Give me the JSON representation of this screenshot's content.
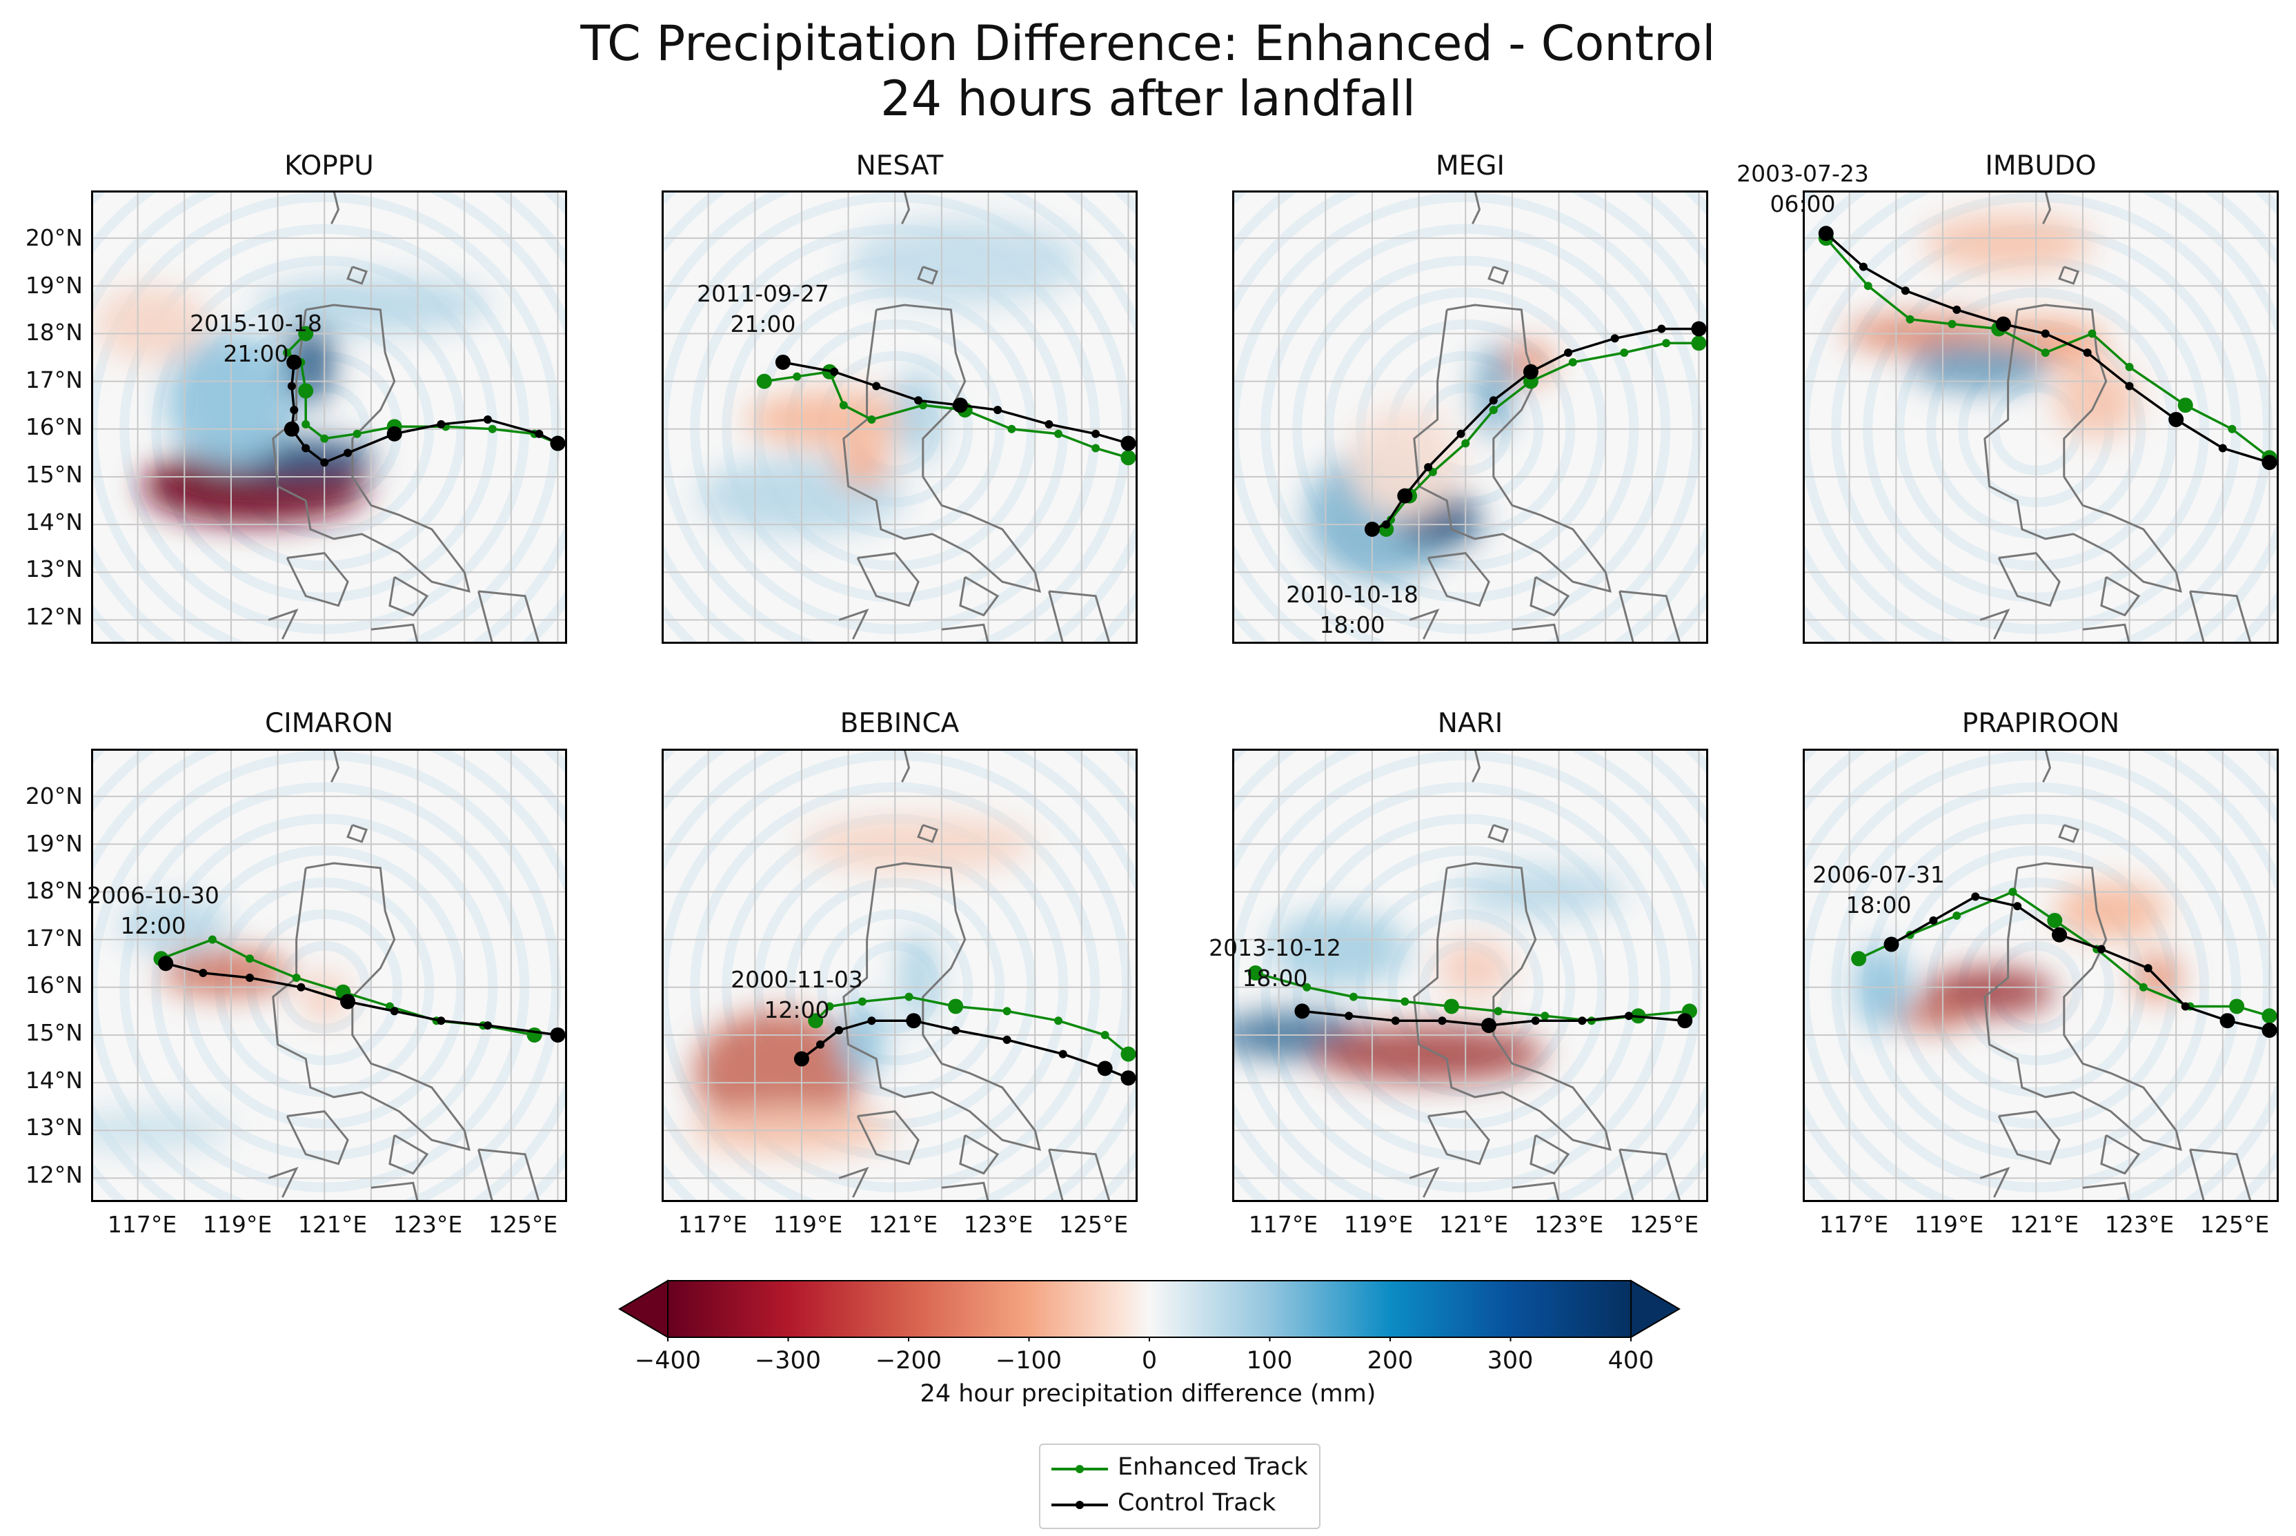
{
  "title_line1": "TC Precipitation Difference: Enhanced - Control",
  "title_line2": "24 hours after landfall",
  "axes": {
    "lat_ticks": [
      "20°N",
      "19°N",
      "18°N",
      "17°N",
      "16°N",
      "15°N",
      "14°N",
      "13°N",
      "12°N"
    ],
    "lon_ticks": [
      "117°E",
      "119°E",
      "121°E",
      "123°E",
      "125°E"
    ]
  },
  "colorbar": {
    "label": "24 hour precipitation difference (mm)",
    "ticks": [
      "−400",
      "−300",
      "−200",
      "−100",
      "0",
      "100",
      "200",
      "300",
      "400"
    ],
    "colors": {
      "neg_max": "#67001f",
      "neg_mid": "#f4a582",
      "zero": "#f7f7f7",
      "pos_mid": "#92c5de",
      "pos_max": "#053061"
    }
  },
  "legend": {
    "enhanced": "Enhanced Track",
    "control": "Control Track"
  },
  "colors": {
    "enhanced": "#0c8a0c",
    "control": "#000000",
    "coast": "#777777",
    "grid": "#c8c8c8"
  },
  "chart_data": [
    {
      "type": "map",
      "title": "KOPPU",
      "annotation": [
        "2015-10-18",
        "21:00"
      ],
      "enhanced_track": [
        [
          126,
          15.7
        ],
        [
          125.5,
          15.9
        ],
        [
          124.6,
          16.0
        ],
        [
          123.6,
          16.05
        ],
        [
          122.5,
          16.05
        ],
        [
          121.7,
          15.9
        ],
        [
          121,
          15.8
        ],
        [
          120.6,
          16.1
        ],
        [
          120.6,
          16.8
        ],
        [
          120.5,
          17.4
        ],
        [
          120.2,
          17.6
        ],
        [
          120.6,
          18.0
        ]
      ],
      "control_track": [
        [
          126,
          15.7
        ],
        [
          125.6,
          15.9
        ],
        [
          124.5,
          16.2
        ],
        [
          123.5,
          16.1
        ],
        [
          122.5,
          15.9
        ],
        [
          121.5,
          15.5
        ],
        [
          121,
          15.3
        ],
        [
          120.6,
          15.6
        ],
        [
          120.3,
          16.0
        ],
        [
          120.35,
          16.4
        ],
        [
          120.3,
          16.9
        ],
        [
          120.35,
          17.4
        ]
      ]
    },
    {
      "type": "map",
      "title": "NESAT",
      "annotation": [
        "2011-09-27",
        "21:00"
      ],
      "enhanced_track": [
        [
          126,
          15.4
        ],
        [
          125.3,
          15.6
        ],
        [
          124.5,
          15.9
        ],
        [
          123.5,
          16.0
        ],
        [
          122.5,
          16.4
        ],
        [
          121.6,
          16.5
        ],
        [
          120.5,
          16.2
        ],
        [
          119.9,
          16.5
        ],
        [
          119.6,
          17.2
        ],
        [
          118.9,
          17.1
        ],
        [
          118.2,
          17.0
        ]
      ],
      "control_track": [
        [
          126,
          15.7
        ],
        [
          125.3,
          15.9
        ],
        [
          124.3,
          16.1
        ],
        [
          123.2,
          16.4
        ],
        [
          122.4,
          16.5
        ],
        [
          121.5,
          16.6
        ],
        [
          120.6,
          16.9
        ],
        [
          119.7,
          17.2
        ],
        [
          118.6,
          17.4
        ]
      ]
    },
    {
      "type": "map",
      "title": "MEGI",
      "annotation": [
        "2010-10-18",
        "18:00"
      ],
      "enhanced_track": [
        [
          126,
          17.8
        ],
        [
          125.3,
          17.8
        ],
        [
          124.4,
          17.6
        ],
        [
          123.3,
          17.4
        ],
        [
          122.4,
          17.0
        ],
        [
          121.6,
          16.4
        ],
        [
          121.0,
          15.7
        ],
        [
          120.3,
          15.1
        ],
        [
          119.8,
          14.6
        ],
        [
          119.4,
          14.1
        ],
        [
          119.3,
          13.9
        ]
      ],
      "control_track": [
        [
          126,
          18.1
        ],
        [
          125.2,
          18.1
        ],
        [
          124.2,
          17.9
        ],
        [
          123.2,
          17.6
        ],
        [
          122.4,
          17.2
        ],
        [
          121.6,
          16.6
        ],
        [
          120.9,
          15.9
        ],
        [
          120.2,
          15.2
        ],
        [
          119.7,
          14.6
        ],
        [
          119.3,
          14.0
        ],
        [
          119.0,
          13.9
        ]
      ]
    },
    {
      "type": "map",
      "title": "IMBUDO",
      "annotation": [
        "2003-07-23",
        "06:00"
      ],
      "enhanced_track": [
        [
          116.5,
          20.0
        ],
        [
          117.4,
          19.0
        ],
        [
          118.3,
          18.3
        ],
        [
          119.2,
          18.2
        ],
        [
          120.2,
          18.1
        ],
        [
          121.2,
          17.6
        ],
        [
          122.2,
          18.0
        ],
        [
          123.0,
          17.3
        ],
        [
          124.2,
          16.5
        ],
        [
          125.2,
          16.0
        ],
        [
          126,
          15.4
        ]
      ],
      "control_track": [
        [
          116.5,
          20.1
        ],
        [
          117.3,
          19.4
        ],
        [
          118.2,
          18.9
        ],
        [
          119.3,
          18.5
        ],
        [
          120.3,
          18.2
        ],
        [
          121.2,
          18.0
        ],
        [
          122.1,
          17.6
        ],
        [
          123.0,
          16.9
        ],
        [
          124.0,
          16.2
        ],
        [
          125.0,
          15.6
        ],
        [
          126,
          15.3
        ]
      ]
    },
    {
      "type": "map",
      "title": "CIMARON",
      "annotation": [
        "2006-10-30",
        "12:00"
      ],
      "enhanced_track": [
        [
          117.5,
          16.6
        ],
        [
          118.6,
          17.0
        ],
        [
          119.4,
          16.6
        ],
        [
          120.4,
          16.2
        ],
        [
          121.4,
          15.9
        ],
        [
          122.4,
          15.6
        ],
        [
          123.4,
          15.3
        ],
        [
          124.4,
          15.2
        ],
        [
          125.5,
          15.0
        ]
      ],
      "control_track": [
        [
          117.6,
          16.5
        ],
        [
          118.4,
          16.3
        ],
        [
          119.4,
          16.2
        ],
        [
          120.5,
          16.0
        ],
        [
          121.5,
          15.7
        ],
        [
          122.5,
          15.5
        ],
        [
          123.5,
          15.3
        ],
        [
          124.5,
          15.2
        ],
        [
          126,
          15.0
        ]
      ]
    },
    {
      "type": "map",
      "title": "BEBINCA",
      "annotation": [
        "2000-11-03",
        "12:00"
      ],
      "enhanced_track": [
        [
          119.3,
          15.3
        ],
        [
          119.6,
          15.6
        ],
        [
          120.3,
          15.7
        ],
        [
          121.3,
          15.8
        ],
        [
          122.3,
          15.6
        ],
        [
          123.4,
          15.5
        ],
        [
          124.5,
          15.3
        ],
        [
          125.5,
          15.0
        ],
        [
          126,
          14.6
        ]
      ],
      "control_track": [
        [
          119.0,
          14.5
        ],
        [
          119.4,
          14.8
        ],
        [
          119.8,
          15.1
        ],
        [
          120.5,
          15.3
        ],
        [
          121.4,
          15.3
        ],
        [
          122.3,
          15.1
        ],
        [
          123.4,
          14.9
        ],
        [
          124.6,
          14.6
        ],
        [
          125.5,
          14.3
        ],
        [
          126,
          14.1
        ]
      ]
    },
    {
      "type": "map",
      "title": "NARI",
      "annotation": [
        "2013-10-12",
        "18:00"
      ],
      "enhanced_track": [
        [
          116.5,
          16.3
        ],
        [
          117.6,
          16.0
        ],
        [
          118.6,
          15.8
        ],
        [
          119.7,
          15.7
        ],
        [
          120.7,
          15.6
        ],
        [
          121.7,
          15.5
        ],
        [
          122.7,
          15.4
        ],
        [
          123.7,
          15.3
        ],
        [
          124.7,
          15.4
        ],
        [
          125.8,
          15.5
        ]
      ],
      "control_track": [
        [
          117.5,
          15.5
        ],
        [
          118.5,
          15.4
        ],
        [
          119.5,
          15.3
        ],
        [
          120.5,
          15.3
        ],
        [
          121.5,
          15.2
        ],
        [
          122.5,
          15.3
        ],
        [
          123.5,
          15.3
        ],
        [
          124.5,
          15.4
        ],
        [
          125.7,
          15.3
        ]
      ]
    },
    {
      "type": "map",
      "title": "PRAPIROON",
      "annotation": [
        "2006-07-31",
        "18:00"
      ],
      "enhanced_track": [
        [
          117.2,
          16.6
        ],
        [
          118.3,
          17.1
        ],
        [
          119.3,
          17.5
        ],
        [
          120.5,
          18.0
        ],
        [
          121.4,
          17.4
        ],
        [
          122.3,
          16.8
        ],
        [
          123.3,
          16.0
        ],
        [
          124.3,
          15.6
        ],
        [
          125.3,
          15.6
        ],
        [
          126,
          15.4
        ]
      ],
      "control_track": [
        [
          117.9,
          16.9
        ],
        [
          118.8,
          17.4
        ],
        [
          119.7,
          17.9
        ],
        [
          120.6,
          17.7
        ],
        [
          121.5,
          17.1
        ],
        [
          122.4,
          16.8
        ],
        [
          123.4,
          16.4
        ],
        [
          124.2,
          15.6
        ],
        [
          125.1,
          15.3
        ],
        [
          126,
          15.1
        ]
      ]
    }
  ]
}
